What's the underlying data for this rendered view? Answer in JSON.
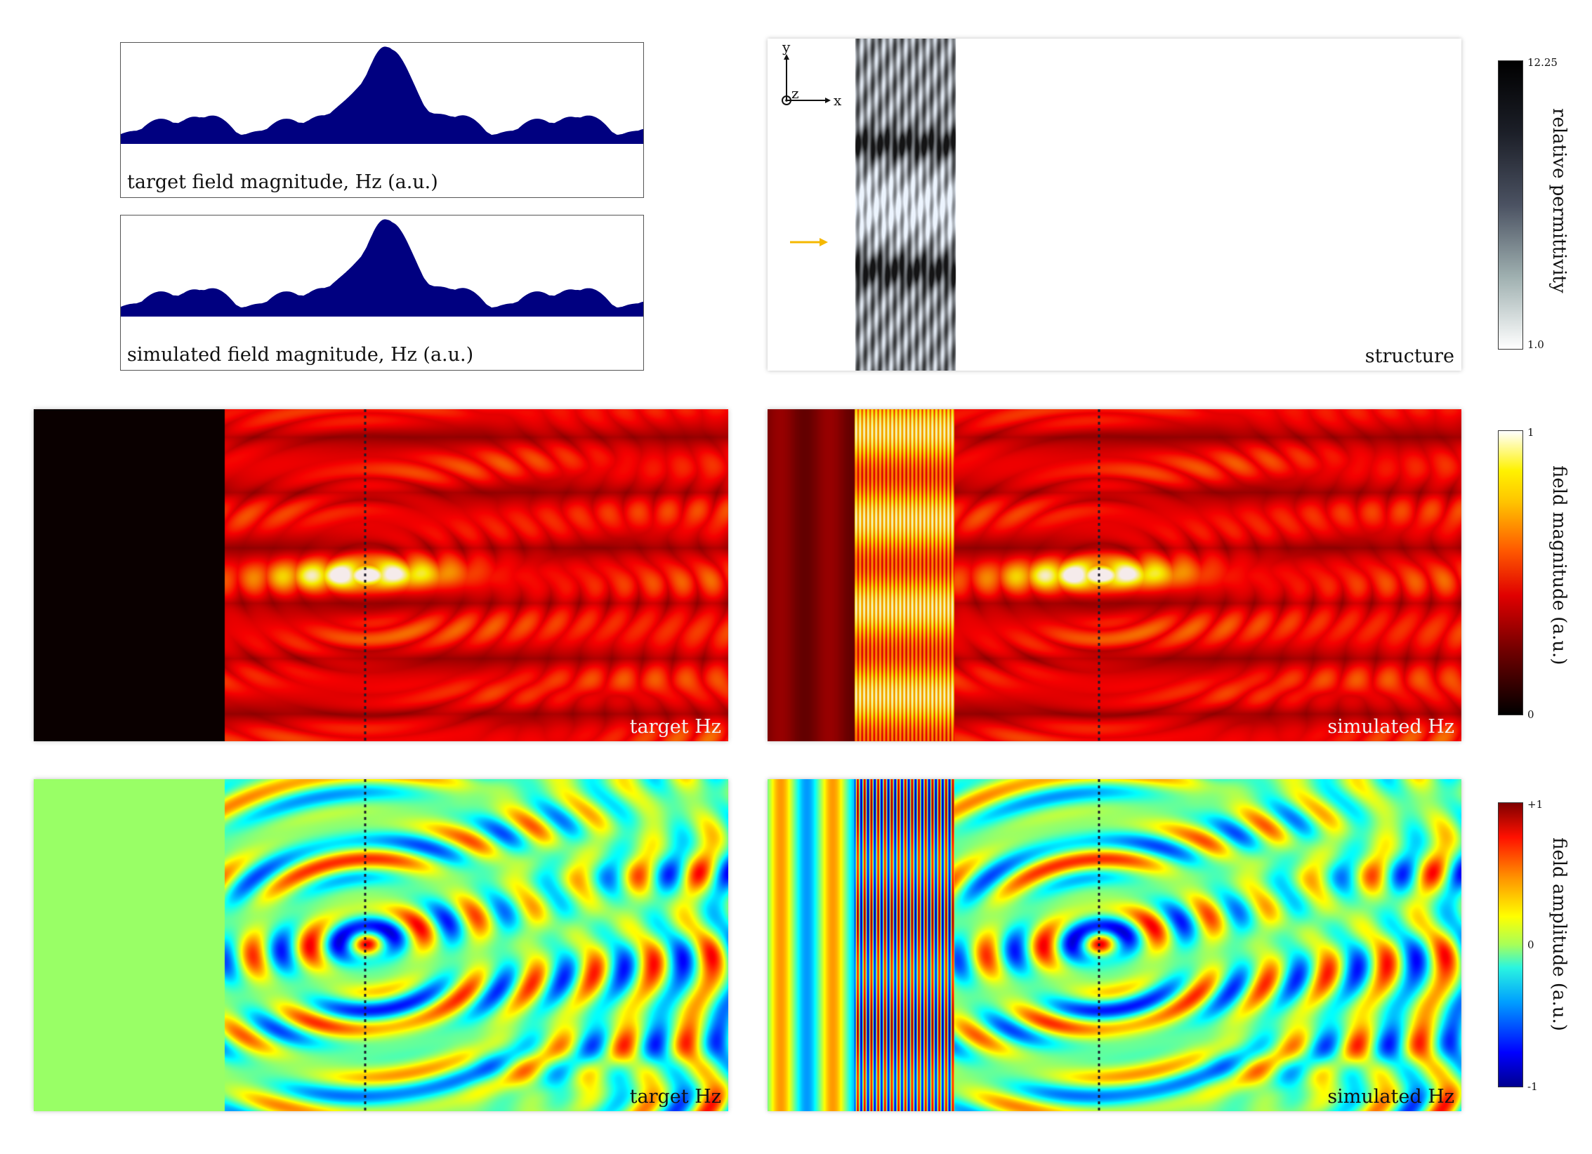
{
  "profiles": [
    {
      "caption": "target field magnitude, Hz (a.u.)"
    },
    {
      "caption": "simulated field magnitude, Hz (a.u.)"
    }
  ],
  "profile_shape": {
    "center_peak": 1.0,
    "side_lobes": [
      0.07,
      0.1,
      0.17,
      0.17,
      0.1,
      0.1,
      0.07
    ],
    "fill_color": "#000080"
  },
  "structure": {
    "label": "structure",
    "axes": {
      "x": "x",
      "y": "y",
      "z": "z"
    },
    "source_arrow_color": "#f5b800"
  },
  "panels": {
    "target_mag": {
      "label": "target Hz"
    },
    "sim_mag": {
      "label": "simulated Hz"
    },
    "target_amp": {
      "label": "target Hz"
    },
    "sim_amp": {
      "label": "simulated Hz"
    }
  },
  "colorbars": {
    "permittivity": {
      "title": "relative permittivity",
      "max": "12.25",
      "min": "1.0"
    },
    "magnitude": {
      "title": "field magnitude (a.u.)",
      "max": "1",
      "min": "0"
    },
    "amplitude": {
      "title": "field amplitude (a.u.)",
      "max": "+1",
      "mid": "0",
      "min": "-1"
    }
  },
  "colors": {
    "hot_dark": "#100000",
    "jet_mid": "#8cff6a"
  }
}
